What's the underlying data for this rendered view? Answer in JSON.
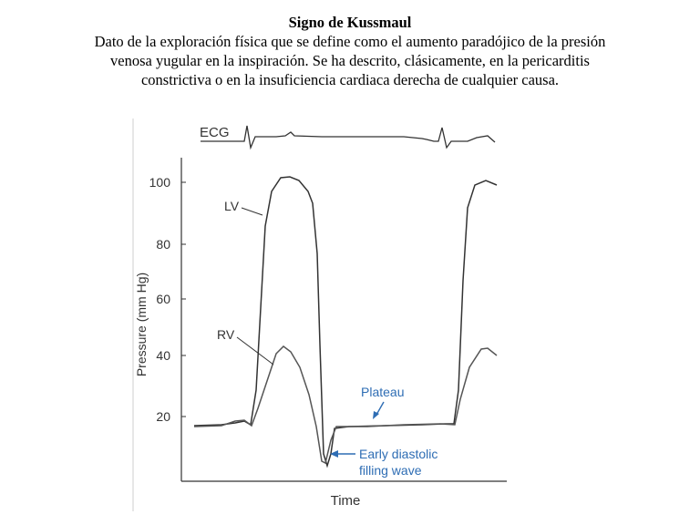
{
  "document": {
    "title": "Signo de Kussmaul",
    "lines": [
      "Dato de la exploración física que se define como el aumento paradójico de la presión",
      "venosa yugular en la inspiración. Se ha descrito, clásicamente, en la pericarditis",
      "constrictiva o en la insuficiencia cardiaca derecha de cualquier causa."
    ]
  },
  "figure": {
    "ecg_label": "ECG",
    "lv_label": "LV",
    "rv_label": "RV",
    "plateau_label": "Plateau",
    "early_line1": "Early diastolic",
    "early_line2": "filling wave",
    "ylabel": "Pressure (mm Hg)",
    "xlabel": "Time",
    "yticks": [
      "100",
      "80",
      "60",
      "40",
      "20"
    ],
    "colors": {
      "annotation": "#2e6db4",
      "trace": "#333333"
    }
  }
}
